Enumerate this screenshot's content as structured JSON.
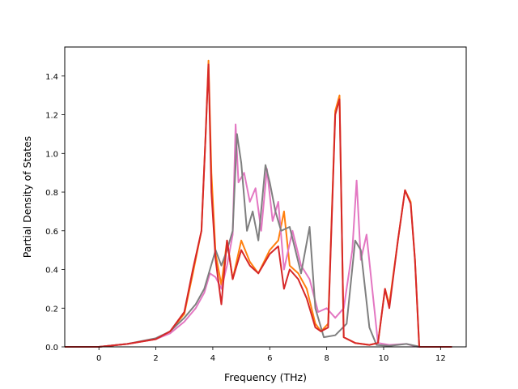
{
  "chart_data": {
    "type": "line",
    "title": "",
    "xlabel": "Frequency (THz)",
    "ylabel": "Partial Density of States",
    "xlim": [
      -1.2,
      12.9
    ],
    "ylim": [
      0.0,
      1.55
    ],
    "xticks": [
      0,
      2,
      4,
      6,
      8,
      10,
      12
    ],
    "yticks": [
      0.0,
      0.2,
      0.4,
      0.6,
      0.8,
      1.0,
      1.2,
      1.4
    ],
    "xtick_labels": [
      "0",
      "2",
      "4",
      "6",
      "8",
      "10",
      "12"
    ],
    "ytick_labels": [
      "0.0",
      "0.2",
      "0.4",
      "0.6",
      "0.8",
      "1.0",
      "1.2",
      "1.4"
    ],
    "grid": false,
    "legend": false,
    "series": [
      {
        "color": "#ff7f0e",
        "points": [
          [
            -1.2,
            0
          ],
          [
            0,
            0
          ],
          [
            1,
            0.015
          ],
          [
            2,
            0.04
          ],
          [
            2.5,
            0.08
          ],
          [
            3,
            0.17
          ],
          [
            3.3,
            0.38
          ],
          [
            3.6,
            0.6
          ],
          [
            3.75,
            1.1
          ],
          [
            3.85,
            1.48
          ],
          [
            3.95,
            0.9
          ],
          [
            4.1,
            0.48
          ],
          [
            4.3,
            0.32
          ],
          [
            4.5,
            0.55
          ],
          [
            4.7,
            0.35
          ],
          [
            5,
            0.55
          ],
          [
            5.3,
            0.44
          ],
          [
            5.6,
            0.38
          ],
          [
            6,
            0.5
          ],
          [
            6.3,
            0.55
          ],
          [
            6.5,
            0.7
          ],
          [
            6.7,
            0.42
          ],
          [
            7,
            0.38
          ],
          [
            7.3,
            0.3
          ],
          [
            7.6,
            0.12
          ],
          [
            7.8,
            0.08
          ],
          [
            8.05,
            0.12
          ],
          [
            8.3,
            1.22
          ],
          [
            8.45,
            1.3
          ],
          [
            8.6,
            0.05
          ],
          [
            9,
            0.02
          ],
          [
            9.5,
            0.01
          ],
          [
            9.8,
            0.02
          ],
          [
            10.05,
            0.3
          ],
          [
            10.2,
            0.22
          ],
          [
            10.5,
            0.55
          ],
          [
            10.75,
            0.81
          ],
          [
            10.95,
            0.75
          ],
          [
            11.1,
            0.45
          ],
          [
            11.25,
            0.0
          ],
          [
            12.4,
            0
          ]
        ]
      },
      {
        "color": "#e377c2",
        "points": [
          [
            -1.2,
            0
          ],
          [
            0,
            0
          ],
          [
            1,
            0.015
          ],
          [
            2,
            0.04
          ],
          [
            2.5,
            0.07
          ],
          [
            3,
            0.13
          ],
          [
            3.4,
            0.2
          ],
          [
            3.7,
            0.28
          ],
          [
            3.9,
            0.38
          ],
          [
            4.1,
            0.36
          ],
          [
            4.3,
            0.3
          ],
          [
            4.5,
            0.42
          ],
          [
            4.7,
            0.58
          ],
          [
            4.8,
            1.15
          ],
          [
            4.9,
            0.85
          ],
          [
            5.1,
            0.9
          ],
          [
            5.3,
            0.75
          ],
          [
            5.5,
            0.82
          ],
          [
            5.7,
            0.6
          ],
          [
            5.9,
            0.92
          ],
          [
            6.1,
            0.65
          ],
          [
            6.3,
            0.75
          ],
          [
            6.5,
            0.4
          ],
          [
            6.8,
            0.6
          ],
          [
            7.1,
            0.42
          ],
          [
            7.4,
            0.35
          ],
          [
            7.7,
            0.18
          ],
          [
            8,
            0.2
          ],
          [
            8.3,
            0.15
          ],
          [
            8.6,
            0.2
          ],
          [
            8.9,
            0.5
          ],
          [
            9.05,
            0.86
          ],
          [
            9.2,
            0.45
          ],
          [
            9.4,
            0.58
          ],
          [
            9.6,
            0.3
          ],
          [
            9.8,
            0.02
          ],
          [
            10.2,
            0.01
          ],
          [
            10.8,
            0.015
          ],
          [
            11.2,
            0.0
          ],
          [
            12.4,
            0
          ]
        ]
      },
      {
        "color": "#7f7f7f",
        "points": [
          [
            -1.2,
            0
          ],
          [
            0,
            0
          ],
          [
            1,
            0.015
          ],
          [
            2,
            0.045
          ],
          [
            2.5,
            0.08
          ],
          [
            3,
            0.15
          ],
          [
            3.4,
            0.22
          ],
          [
            3.7,
            0.3
          ],
          [
            3.9,
            0.4
          ],
          [
            4.1,
            0.5
          ],
          [
            4.3,
            0.42
          ],
          [
            4.5,
            0.5
          ],
          [
            4.7,
            0.6
          ],
          [
            4.85,
            1.1
          ],
          [
            5,
            0.95
          ],
          [
            5.2,
            0.6
          ],
          [
            5.4,
            0.7
          ],
          [
            5.6,
            0.55
          ],
          [
            5.85,
            0.94
          ],
          [
            6,
            0.85
          ],
          [
            6.2,
            0.7
          ],
          [
            6.4,
            0.6
          ],
          [
            6.7,
            0.62
          ],
          [
            7.1,
            0.38
          ],
          [
            7.4,
            0.62
          ],
          [
            7.6,
            0.2
          ],
          [
            7.9,
            0.05
          ],
          [
            8.3,
            0.06
          ],
          [
            8.7,
            0.12
          ],
          [
            9,
            0.55
          ],
          [
            9.2,
            0.5
          ],
          [
            9.5,
            0.1
          ],
          [
            9.75,
            0.01
          ],
          [
            10.2,
            0.005
          ],
          [
            10.8,
            0.015
          ],
          [
            11.3,
            0.0
          ],
          [
            12.4,
            0
          ]
        ]
      },
      {
        "color": "#d62728",
        "points": [
          [
            -1.2,
            0
          ],
          [
            0,
            0
          ],
          [
            1,
            0.015
          ],
          [
            2,
            0.04
          ],
          [
            2.5,
            0.08
          ],
          [
            3,
            0.18
          ],
          [
            3.3,
            0.4
          ],
          [
            3.6,
            0.6
          ],
          [
            3.75,
            1.1
          ],
          [
            3.85,
            1.46
          ],
          [
            3.95,
            0.8
          ],
          [
            4.1,
            0.45
          ],
          [
            4.3,
            0.22
          ],
          [
            4.5,
            0.55
          ],
          [
            4.7,
            0.35
          ],
          [
            5,
            0.5
          ],
          [
            5.3,
            0.42
          ],
          [
            5.6,
            0.38
          ],
          [
            6,
            0.48
          ],
          [
            6.3,
            0.52
          ],
          [
            6.5,
            0.3
          ],
          [
            6.7,
            0.4
          ],
          [
            7,
            0.35
          ],
          [
            7.3,
            0.25
          ],
          [
            7.6,
            0.1
          ],
          [
            7.8,
            0.08
          ],
          [
            8.05,
            0.1
          ],
          [
            8.3,
            1.2
          ],
          [
            8.45,
            1.28
          ],
          [
            8.6,
            0.05
          ],
          [
            9,
            0.02
          ],
          [
            9.5,
            0.01
          ],
          [
            9.8,
            0.02
          ],
          [
            10.05,
            0.3
          ],
          [
            10.2,
            0.2
          ],
          [
            10.5,
            0.55
          ],
          [
            10.75,
            0.81
          ],
          [
            10.95,
            0.74
          ],
          [
            11.1,
            0.45
          ],
          [
            11.25,
            0.0
          ],
          [
            12.4,
            0
          ]
        ]
      }
    ]
  }
}
